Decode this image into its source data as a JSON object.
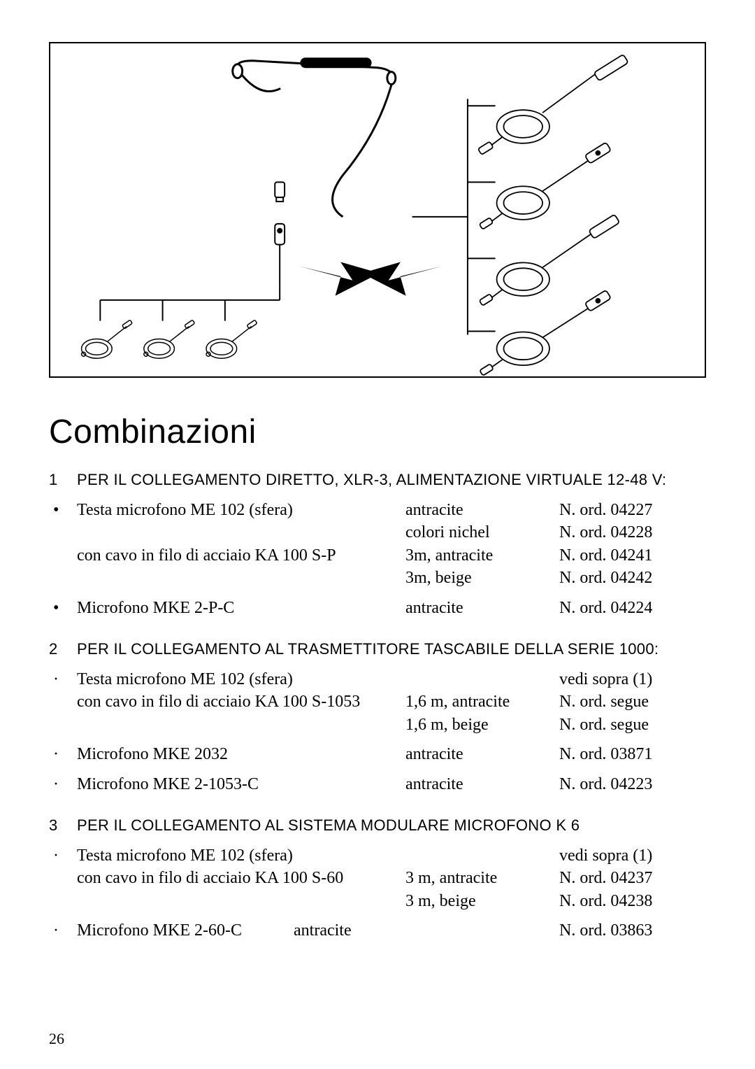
{
  "page_number": "26",
  "main_title": "Combinazioni",
  "sections": [
    {
      "num": "1",
      "heading": "PER IL COLLEGAMENTO DIRETTO, XLR-3, ALIMENTAZIONE VIRTUALE 12-48 V:",
      "bullet_char": "•",
      "groups": [
        {
          "rows": [
            {
              "desc": "Testa microfono ME 102 (sfera)",
              "mid": "antracite",
              "ord": "N. ord. 04227",
              "bullet": true
            },
            {
              "desc": "",
              "mid": "colori nichel",
              "ord": "N. ord. 04228",
              "bullet": false
            },
            {
              "desc": "con cavo in filo di acciaio KA 100 S-P",
              "mid": "3m, antracite",
              "ord": "N. ord. 04241",
              "bullet": false
            },
            {
              "desc": "",
              "mid": "3m, beige",
              "ord": "N. ord. 04242",
              "bullet": false
            }
          ]
        },
        {
          "rows": [
            {
              "desc": "Microfono MKE 2-P-C",
              "mid": "antracite",
              "ord": "N. ord. 04224",
              "bullet": true
            }
          ]
        }
      ]
    },
    {
      "num": "2",
      "heading": "PER IL COLLEGAMENTO AL TRASMETTITORE TASCABILE DELLA SERIE 1000:",
      "bullet_char": "·",
      "groups": [
        {
          "rows": [
            {
              "desc": "Testa microfono ME 102 (sfera)",
              "mid": "",
              "ord": "vedi sopra (1)",
              "bullet": true
            },
            {
              "desc": "con cavo in filo di acciaio KA 100 S-1053",
              "mid": "1,6 m,  antracite",
              "ord": "N. ord. segue",
              "bullet": false
            },
            {
              "desc": "",
              "mid": "1,6 m,  beige",
              "ord": "N. ord. segue",
              "bullet": false
            }
          ]
        },
        {
          "rows": [
            {
              "desc": "Microfono MKE 2032",
              "mid": "antracite",
              "ord": "N. ord. 03871",
              "bullet": true
            }
          ]
        },
        {
          "rows": [
            {
              "desc": "Microfono MKE 2-1053-C",
              "mid": "antracite",
              "ord": "N. ord. 04223",
              "bullet": true
            }
          ]
        }
      ]
    },
    {
      "num": "3",
      "heading": "PER IL COLLEGAMENTO AL SISTEMA MODULARE MICROFONO K 6",
      "bullet_char": "·",
      "groups": [
        {
          "rows": [
            {
              "desc": "Testa microfono ME 102 (sfera)",
              "mid": "",
              "ord": "vedi sopra (1)",
              "bullet": true
            },
            {
              "desc": "con cavo in filo di acciaio KA 100 S-60",
              "mid": "3 m,  antracite",
              "ord": "N. ord. 04237",
              "bullet": false
            },
            {
              "desc": "",
              "mid": "3 m,  beige",
              "ord": "N. ord. 04238",
              "bullet": false
            }
          ]
        },
        {
          "rows_custom": [
            {
              "desc": "Microfono MKE 2-60-C",
              "mid": "antracite",
              "ord": "N. ord. 03863",
              "bullet": true
            }
          ]
        }
      ]
    }
  ]
}
